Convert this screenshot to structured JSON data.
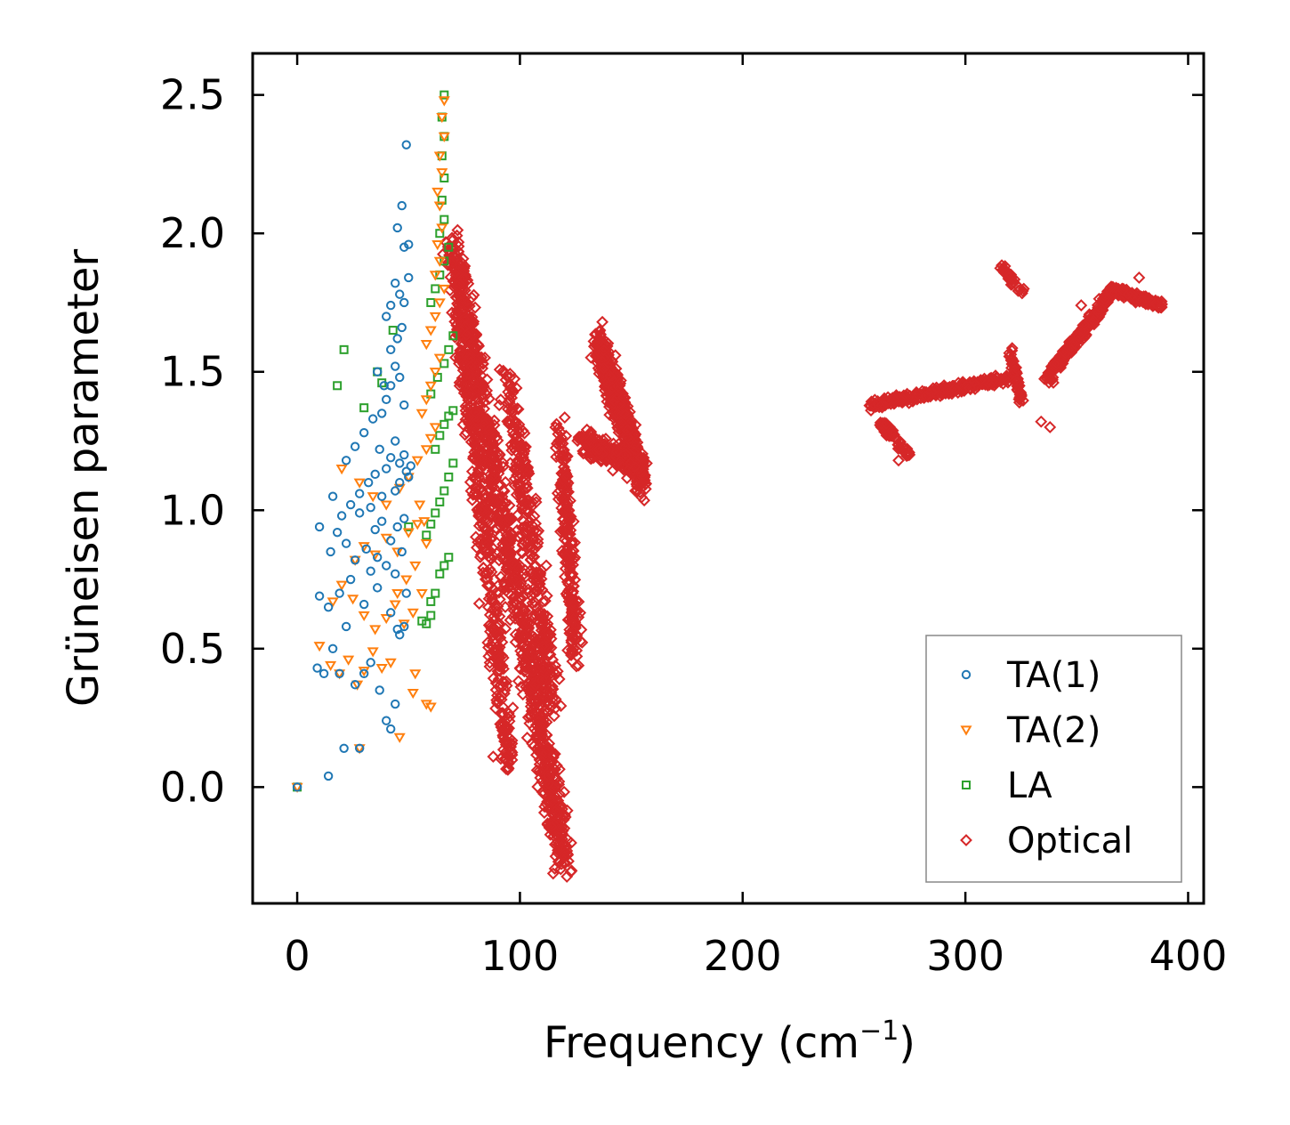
{
  "chart_data": {
    "type": "scatter",
    "title": "",
    "xlabel": "Frequency (cm",
    "xlabel_sup": "−1",
    "xlabel_end": ")",
    "ylabel": "Grüneisen parameter",
    "xlim": [
      -20,
      407
    ],
    "ylim": [
      -0.42,
      2.65
    ],
    "xticks": [
      0,
      100,
      200,
      300,
      400
    ],
    "yticks": [
      0.0,
      0.5,
      1.0,
      1.5,
      2.0,
      2.5
    ],
    "xtick_labels": [
      "0",
      "100",
      "200",
      "300",
      "400"
    ],
    "ytick_labels": [
      "0.0",
      "0.5",
      "1.0",
      "1.5",
      "2.0",
      "2.5"
    ],
    "grid": false,
    "legend_position": "bottom-right",
    "series": [
      {
        "name": "TA(1)",
        "marker": "circle",
        "color": "#1f77b4",
        "points": [
          [
            0,
            0
          ],
          [
            14,
            0.04
          ],
          [
            21,
            0.14
          ],
          [
            28,
            0.14
          ],
          [
            9,
            0.43
          ],
          [
            12,
            0.41
          ],
          [
            16,
            0.5
          ],
          [
            19,
            0.41
          ],
          [
            22,
            0.58
          ],
          [
            26,
            0.37
          ],
          [
            30,
            0.41
          ],
          [
            33,
            0.45
          ],
          [
            37,
            0.35
          ],
          [
            40,
            0.24
          ],
          [
            42,
            0.21
          ],
          [
            44,
            0.3
          ],
          [
            46,
            0.55
          ],
          [
            48,
            0.58
          ],
          [
            10,
            0.69
          ],
          [
            14,
            0.65
          ],
          [
            19,
            0.7
          ],
          [
            24,
            0.75
          ],
          [
            30,
            0.66
          ],
          [
            36,
            0.72
          ],
          [
            42,
            0.63
          ],
          [
            45,
            0.57
          ],
          [
            49,
            0.7
          ],
          [
            15,
            0.85
          ],
          [
            18,
            0.92
          ],
          [
            22,
            0.88
          ],
          [
            26,
            0.82
          ],
          [
            31,
            0.86
          ],
          [
            35,
            0.93
          ],
          [
            38,
            0.96
          ],
          [
            42,
            0.89
          ],
          [
            45,
            0.94
          ],
          [
            48,
            0.97
          ],
          [
            10,
            0.94
          ],
          [
            16,
            1.05
          ],
          [
            20,
            0.98
          ],
          [
            24,
            1.02
          ],
          [
            28,
            1.06
          ],
          [
            32,
            1.1
          ],
          [
            35,
            1.13
          ],
          [
            37,
            1.22
          ],
          [
            40,
            1.15
          ],
          [
            42,
            1.19
          ],
          [
            44,
            1.25
          ],
          [
            46,
            1.17
          ],
          [
            48,
            1.2
          ],
          [
            50,
            1.12
          ],
          [
            22,
            1.18
          ],
          [
            26,
            1.23
          ],
          [
            30,
            1.28
          ],
          [
            34,
            1.33
          ],
          [
            38,
            1.35
          ],
          [
            40,
            1.4
          ],
          [
            42,
            1.45
          ],
          [
            44,
            1.52
          ],
          [
            46,
            1.48
          ],
          [
            48,
            1.38
          ],
          [
            36,
            1.5
          ],
          [
            39,
            1.45
          ],
          [
            42,
            1.58
          ],
          [
            45,
            1.62
          ],
          [
            47,
            1.66
          ],
          [
            40,
            1.7
          ],
          [
            42,
            1.74
          ],
          [
            44,
            1.82
          ],
          [
            46,
            1.78
          ],
          [
            48,
            1.75
          ],
          [
            50,
            1.84
          ],
          [
            45,
            2.02
          ],
          [
            48,
            1.95
          ],
          [
            50,
            1.96
          ],
          [
            47,
            2.1
          ],
          [
            49,
            2.32
          ],
          [
            28,
            0.99
          ],
          [
            33,
            1.01
          ],
          [
            38,
            1.05
          ],
          [
            44,
            1.07
          ],
          [
            46,
            1.1
          ],
          [
            49,
            1.14
          ],
          [
            51,
            1.16
          ],
          [
            47,
            0.85
          ],
          [
            44,
            0.77
          ],
          [
            40,
            0.8
          ],
          [
            36,
            0.83
          ],
          [
            33,
            0.78
          ]
        ]
      },
      {
        "name": "TA(2)",
        "marker": "triangle-down",
        "color": "#ff7f0e",
        "points": [
          [
            0,
            0
          ],
          [
            28,
            0.14
          ],
          [
            10,
            0.51
          ],
          [
            15,
            0.44
          ],
          [
            19,
            0.41
          ],
          [
            23,
            0.46
          ],
          [
            27,
            0.37
          ],
          [
            30,
            0.42
          ],
          [
            34,
            0.49
          ],
          [
            38,
            0.43
          ],
          [
            42,
            0.45
          ],
          [
            46,
            0.18
          ],
          [
            52,
            0.34
          ],
          [
            53,
            0.41
          ],
          [
            58,
            0.3
          ],
          [
            60,
            0.29
          ],
          [
            16,
            0.67
          ],
          [
            20,
            0.73
          ],
          [
            25,
            0.68
          ],
          [
            30,
            0.62
          ],
          [
            35,
            0.57
          ],
          [
            40,
            0.61
          ],
          [
            44,
            0.66
          ],
          [
            48,
            0.59
          ],
          [
            52,
            0.63
          ],
          [
            56,
            0.7
          ],
          [
            26,
            0.82
          ],
          [
            30,
            0.87
          ],
          [
            35,
            0.84
          ],
          [
            40,
            0.9
          ],
          [
            45,
            0.85
          ],
          [
            50,
            0.92
          ],
          [
            54,
            0.95
          ],
          [
            58,
            0.88
          ],
          [
            20,
            1.15
          ],
          [
            28,
            1.1
          ],
          [
            34,
            1.05
          ],
          [
            40,
            1.02
          ],
          [
            46,
            1.08
          ],
          [
            50,
            1.12
          ],
          [
            54,
            1.18
          ],
          [
            58,
            1.22
          ],
          [
            60,
            1.26
          ],
          [
            62,
            1.3
          ],
          [
            56,
            1.35
          ],
          [
            58,
            1.4
          ],
          [
            60,
            1.45
          ],
          [
            62,
            1.5
          ],
          [
            64,
            1.55
          ],
          [
            58,
            1.6
          ],
          [
            60,
            1.65
          ],
          [
            62,
            1.7
          ],
          [
            64,
            1.75
          ],
          [
            66,
            1.8
          ],
          [
            62,
            1.85
          ],
          [
            64,
            1.9
          ],
          [
            63,
            1.96
          ],
          [
            65,
            2.02
          ],
          [
            64,
            2.1
          ],
          [
            63,
            2.15
          ],
          [
            65,
            2.22
          ],
          [
            64,
            2.28
          ],
          [
            66,
            2.35
          ],
          [
            65,
            2.42
          ],
          [
            66,
            2.48
          ],
          [
            55,
            1.02
          ],
          [
            57,
            0.96
          ],
          [
            53,
            0.8
          ],
          [
            49,
            0.75
          ],
          [
            45,
            0.7
          ]
        ]
      },
      {
        "name": "LA",
        "marker": "square",
        "color": "#2ca02c",
        "points": [
          [
            0,
            0
          ],
          [
            18,
            1.45
          ],
          [
            21,
            1.58
          ],
          [
            30,
            1.37
          ],
          [
            36,
            1.5
          ],
          [
            38,
            1.46
          ],
          [
            43,
            1.65
          ],
          [
            50,
            0.94
          ],
          [
            56,
            0.6
          ],
          [
            58,
            0.59
          ],
          [
            60,
            0.62
          ],
          [
            60,
            0.67
          ],
          [
            62,
            0.7
          ],
          [
            64,
            0.77
          ],
          [
            66,
            0.8
          ],
          [
            68,
            0.83
          ],
          [
            58,
            0.91
          ],
          [
            60,
            0.95
          ],
          [
            62,
            0.99
          ],
          [
            64,
            1.03
          ],
          [
            66,
            1.07
          ],
          [
            68,
            1.12
          ],
          [
            70,
            1.17
          ],
          [
            62,
            1.22
          ],
          [
            64,
            1.27
          ],
          [
            66,
            1.31
          ],
          [
            68,
            1.34
          ],
          [
            70,
            1.36
          ],
          [
            60,
            1.42
          ],
          [
            63,
            1.48
          ],
          [
            66,
            1.53
          ],
          [
            68,
            1.58
          ],
          [
            70,
            1.63
          ],
          [
            60,
            1.75
          ],
          [
            62,
            1.8
          ],
          [
            64,
            1.85
          ],
          [
            66,
            1.9
          ],
          [
            68,
            1.95
          ],
          [
            64,
            2.0
          ],
          [
            66,
            2.05
          ],
          [
            65,
            2.12
          ],
          [
            66,
            2.2
          ],
          [
            65,
            2.28
          ],
          [
            66,
            2.35
          ],
          [
            65,
            2.42
          ],
          [
            66,
            2.5
          ]
        ]
      },
      {
        "name": "Optical",
        "marker": "diamond",
        "color": "#d62728",
        "regions": [
          {
            "x": 70,
            "y": 1.95,
            "x_end": 120,
            "y_end": -0.27,
            "spread_x": 14,
            "spread_y": 0.25,
            "count": 900
          },
          {
            "x": 72,
            "y": 1.8,
            "x_end": 95,
            "y_end": 0.1,
            "spread_x": 10,
            "spread_y": 0.3,
            "count": 420
          },
          {
            "x": 95,
            "y": 1.45,
            "x_end": 115,
            "y_end": 0.3,
            "spread_x": 12,
            "spread_y": 0.25,
            "count": 320
          },
          {
            "x": 118,
            "y": 1.3,
            "x_end": 125,
            "y_end": 0.5,
            "spread_x": 8,
            "spread_y": 0.25,
            "count": 220
          },
          {
            "x": 135,
            "y": 1.62,
            "x_end": 155,
            "y_end": 1.1,
            "spread_x": 9,
            "spread_y": 0.2,
            "count": 520
          },
          {
            "x": 128,
            "y": 1.25,
            "x_end": 155,
            "y_end": 1.15,
            "spread_x": 12,
            "spread_y": 0.12,
            "count": 220
          },
          {
            "x": 258,
            "y": 1.38,
            "x_end": 320,
            "y_end": 1.48,
            "spread_x": 5,
            "spread_y": 0.05,
            "count": 300
          },
          {
            "x": 262,
            "y": 1.32,
            "x_end": 275,
            "y_end": 1.2,
            "spread_x": 4,
            "spread_y": 0.05,
            "count": 60
          },
          {
            "x": 320,
            "y": 1.58,
            "x_end": 325,
            "y_end": 1.4,
            "spread_x": 3,
            "spread_y": 0.08,
            "count": 60
          },
          {
            "x": 316,
            "y": 1.88,
            "x_end": 326,
            "y_end": 1.78,
            "spread_x": 3,
            "spread_y": 0.04,
            "count": 30
          },
          {
            "x": 337,
            "y": 1.48,
            "x_end": 365,
            "y_end": 1.78,
            "spread_x": 5,
            "spread_y": 0.06,
            "count": 260
          },
          {
            "x": 365,
            "y": 1.8,
            "x_end": 388,
            "y_end": 1.74,
            "spread_x": 5,
            "spread_y": 0.04,
            "count": 160
          }
        ],
        "points": [
          [
            118,
            -0.27
          ],
          [
            116,
            -0.25
          ],
          [
            120,
            -0.25
          ],
          [
            88,
            0.11
          ],
          [
            100,
            0.73
          ],
          [
            102,
            0.77
          ],
          [
            137,
            1.68
          ],
          [
            334,
            1.32
          ],
          [
            338,
            1.3
          ],
          [
            270,
            1.18
          ],
          [
            352,
            1.74
          ],
          [
            378,
            1.84
          ]
        ]
      }
    ]
  }
}
